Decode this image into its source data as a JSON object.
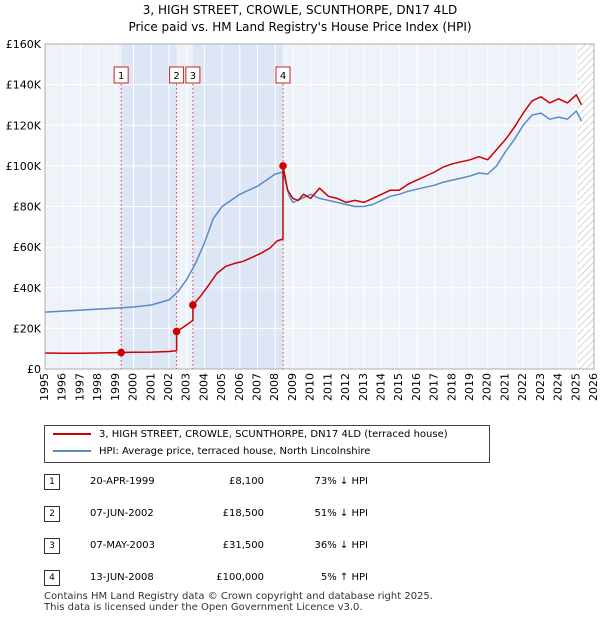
{
  "title_line1": "3, HIGH STREET, CROWLE, SCUNTHORPE, DN17 4LD",
  "title_line2": "Price paid vs. HM Land Registry's House Price Index (HPI)",
  "chart_data": {
    "type": "line",
    "xlim": [
      1995,
      2026
    ],
    "ylim": [
      0,
      160000
    ],
    "y_ticks": [
      0,
      20000,
      40000,
      60000,
      80000,
      100000,
      120000,
      140000,
      160000
    ],
    "y_tick_labels": [
      "£0",
      "£20K",
      "£40K",
      "£60K",
      "£80K",
      "£100K",
      "£120K",
      "£140K",
      "£160K"
    ],
    "x_ticks": [
      1995,
      1996,
      1997,
      1998,
      1999,
      2000,
      2001,
      2002,
      2003,
      2004,
      2005,
      2006,
      2007,
      2008,
      2009,
      2010,
      2011,
      2012,
      2013,
      2014,
      2015,
      2016,
      2017,
      2018,
      2019,
      2020,
      2021,
      2022,
      2023,
      2024,
      2025,
      2026
    ],
    "x_tick_labels": [
      "1995",
      "1996",
      "1997",
      "1998",
      "1999",
      "2000",
      "2001",
      "2002",
      "2003",
      "2004",
      "2005",
      "2006",
      "2007",
      "2008",
      "2009",
      "2010",
      "2011",
      "2012",
      "2013",
      "2014",
      "2015",
      "2016",
      "2017",
      "2018",
      "2019",
      "2020",
      "2021",
      "2022",
      "2023",
      "2024",
      "2025",
      "2026"
    ],
    "forecast_start": 2025.1,
    "series": [
      {
        "name": "3, HIGH STREET, CROWLE, SCUNTHORPE, DN17 4LD (terraced house)",
        "color": "#cc0000",
        "x": [
          1995.0,
          1996.0,
          1997.0,
          1998.0,
          1999.3,
          1999.3,
          2000.0,
          2001.0,
          2002.0,
          2002.43,
          2002.43,
          2002.8,
          2003.35,
          2003.35,
          2003.8,
          2004.3,
          2004.7,
          2005.2,
          2005.7,
          2006.2,
          2006.7,
          2007.2,
          2007.7,
          2008.1,
          2008.44,
          2008.44,
          2008.7,
          2009.0,
          2009.3,
          2009.6,
          2010.0,
          2010.5,
          2011.0,
          2011.5,
          2012.0,
          2012.5,
          2013.0,
          2013.5,
          2014.0,
          2014.5,
          2015.0,
          2015.5,
          2016.0,
          2016.5,
          2017.0,
          2017.5,
          2018.0,
          2018.5,
          2019.0,
          2019.5,
          2020.0,
          2020.5,
          2021.0,
          2021.5,
          2022.0,
          2022.5,
          2023.0,
          2023.5,
          2024.0,
          2024.5,
          2025.0,
          2025.3
        ],
        "y": [
          7900,
          7800,
          7800,
          7900,
          8100,
          8100,
          8200,
          8300,
          8600,
          9000,
          18500,
          20500,
          24000,
          31500,
          36000,
          42000,
          47000,
          50500,
          52000,
          53000,
          55000,
          57000,
          59500,
          63000,
          64000,
          100000,
          88000,
          84000,
          83000,
          86000,
          84000,
          89000,
          85000,
          84000,
          82000,
          83000,
          82000,
          84000,
          86000,
          88000,
          88000,
          91000,
          93000,
          95000,
          97000,
          99500,
          101000,
          102000,
          103000,
          104500,
          103000,
          108000,
          113000,
          119000,
          126000,
          132000,
          134000,
          131000,
          133000,
          131000,
          135000,
          130000
        ]
      },
      {
        "name": "HPI: Average price, terraced house, North Lincolnshire",
        "color": "#5b8ac5",
        "x": [
          1995.0,
          1996.0,
          1997.0,
          1998.0,
          1999.0,
          2000.0,
          2001.0,
          2002.0,
          2002.5,
          2003.0,
          2003.5,
          2004.0,
          2004.5,
          2005.0,
          2005.5,
          2006.0,
          2006.5,
          2007.0,
          2007.5,
          2008.0,
          2008.44,
          2008.8,
          2009.0,
          2009.5,
          2010.0,
          2010.5,
          2011.0,
          2011.5,
          2012.0,
          2012.5,
          2013.0,
          2013.5,
          2014.0,
          2014.5,
          2015.0,
          2015.5,
          2016.0,
          2016.5,
          2017.0,
          2017.5,
          2018.0,
          2018.5,
          2019.0,
          2019.5,
          2020.0,
          2020.5,
          2021.0,
          2021.5,
          2022.0,
          2022.5,
          2023.0,
          2023.5,
          2024.0,
          2024.5,
          2025.0,
          2025.3
        ],
        "y": [
          28000,
          28500,
          29000,
          29500,
          30000,
          30500,
          31500,
          34000,
          38000,
          44000,
          52000,
          62000,
          74000,
          80000,
          83000,
          86000,
          88000,
          90000,
          93000,
          96000,
          97000,
          85000,
          82000,
          84000,
          86000,
          84000,
          83000,
          82000,
          81000,
          80000,
          80000,
          81000,
          83000,
          85000,
          86000,
          87500,
          88500,
          89500,
          90500,
          92000,
          93000,
          94000,
          95000,
          96500,
          96000,
          100000,
          107000,
          113000,
          120000,
          125000,
          126000,
          123000,
          124000,
          123000,
          127000,
          122000
        ]
      }
    ],
    "transactions": [
      {
        "label": "1",
        "x": 1999.3,
        "y": 8100
      },
      {
        "label": "2",
        "x": 2002.43,
        "y": 18500
      },
      {
        "label": "3",
        "x": 2003.35,
        "y": 31500
      },
      {
        "label": "4",
        "x": 2008.44,
        "y": 100000
      }
    ]
  },
  "legend": {
    "red_label": "3, HIGH STREET, CROWLE, SCUNTHORPE, DN17 4LD (terraced house)",
    "blue_label": "HPI: Average price, terraced house, North Lincolnshire"
  },
  "table_rows": [
    {
      "num": "1",
      "date": "20-APR-1999",
      "price": "£8,100",
      "hpi": "73% ↓ HPI"
    },
    {
      "num": "2",
      "date": "07-JUN-2002",
      "price": "£18,500",
      "hpi": "51% ↓ HPI"
    },
    {
      "num": "3",
      "date": "07-MAY-2003",
      "price": "£31,500",
      "hpi": "36% ↓ HPI"
    },
    {
      "num": "4",
      "date": "13-JUN-2008",
      "price": "£100,000",
      "hpi": "5% ↑ HPI"
    }
  ],
  "footer_line1": "Contains HM Land Registry data © Crown copyright and database right 2025.",
  "footer_line2": "This data is licensed under the Open Government Licence v3.0."
}
